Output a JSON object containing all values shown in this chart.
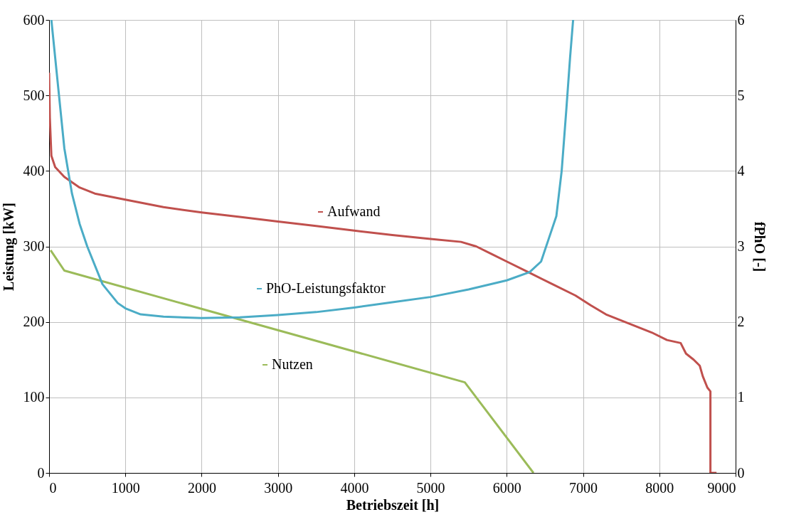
{
  "chart_data": {
    "type": "line",
    "xlabel": "Betriebszeit [h]",
    "ylabel": "Leistung [kW]",
    "y2label": "fPhO [-]",
    "xlim": [
      0,
      9000
    ],
    "xticks": [
      0,
      1000,
      2000,
      3000,
      4000,
      5000,
      6000,
      7000,
      8000,
      9000
    ],
    "ylim": [
      0,
      600
    ],
    "yticks": [
      0,
      100,
      200,
      300,
      400,
      500,
      600
    ],
    "y2lim": [
      0,
      6
    ],
    "y2ticks": [
      0,
      1,
      2,
      3,
      4,
      5,
      6
    ],
    "grid": true,
    "legend": "center",
    "marker": "none",
    "line_style": "solid",
    "series": [
      {
        "name": "Aufwand",
        "color": "#c0504d",
        "x": [
          0,
          10,
          30,
          80,
          200,
          400,
          600,
          1000,
          1500,
          2000,
          2500,
          3000,
          3500,
          4000,
          4500,
          5000,
          5400,
          5600,
          5800,
          6000,
          6300,
          6600,
          6900,
          7100,
          7300,
          7600,
          7900,
          8100,
          8280,
          8350,
          8450,
          8530,
          8570,
          8630,
          8670,
          8670,
          8750
        ],
        "values": [
          530,
          470,
          420,
          405,
          392,
          378,
          370,
          362,
          352,
          345,
          339,
          333,
          327,
          321,
          315,
          310,
          306,
          300,
          290,
          280,
          265,
          250,
          235,
          222,
          210,
          198,
          186,
          176,
          172,
          158,
          150,
          142,
          128,
          113,
          108,
          0,
          0
        ]
      },
      {
        "name": "PhO-Leistungsfaktor",
        "color": "#4bacc6",
        "axis": "y2",
        "x": [
          30,
          100,
          200,
          300,
          400,
          500,
          700,
          900,
          1000,
          1200,
          1500,
          2000,
          2500,
          3000,
          3500,
          4000,
          4500,
          5000,
          5500,
          6000,
          6300,
          6450,
          6550,
          6650,
          6720,
          6780,
          6830,
          6870
        ],
        "values": [
          6.0,
          5.3,
          4.3,
          3.7,
          3.3,
          3.0,
          2.5,
          2.25,
          2.18,
          2.1,
          2.07,
          2.05,
          2.06,
          2.09,
          2.13,
          2.19,
          2.26,
          2.33,
          2.43,
          2.55,
          2.66,
          2.8,
          3.1,
          3.4,
          4.0,
          4.8,
          5.5,
          6.0
        ]
      },
      {
        "name": "Nutzen",
        "color": "#9bbb59",
        "x": [
          20,
          200,
          5450,
          6350
        ],
        "values": [
          295,
          268,
          120,
          0
        ]
      }
    ]
  }
}
